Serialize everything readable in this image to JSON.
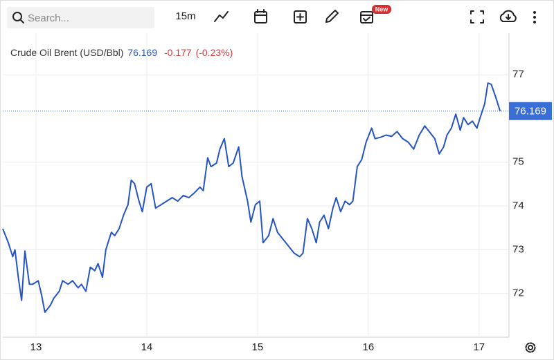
{
  "toolbar": {
    "search_placeholder": "Search...",
    "interval": "15m",
    "badge": "New"
  },
  "chart_data": {
    "type": "line",
    "series": [
      {
        "name": "Crude Oil Brent (USD/Bbl)",
        "color": "#2453c6",
        "values": [
          73.48,
          73.16,
          72.84,
          73.0,
          72.37,
          71.84,
          72.97,
          72.21,
          72.21,
          72.29,
          71.97,
          71.57,
          71.73,
          71.89,
          72.05,
          72.29,
          72.21,
          72.29,
          72.13,
          72.21,
          72.05,
          72.6,
          72.52,
          72.68,
          72.37,
          73.0,
          73.4,
          73.32,
          73.48,
          73.79,
          74.03,
          74.59,
          74.51,
          74.11,
          73.87,
          74.43,
          74.51,
          73.95,
          74.03,
          74.11,
          74.19,
          74.11,
          74.24,
          74.19,
          74.3,
          74.43,
          74.35,
          75.1,
          74.9,
          74.98,
          75.3,
          75.54,
          74.9,
          74.98,
          75.35,
          74.67,
          74.11,
          73.63,
          74.03,
          74.11,
          73.16,
          73.32,
          73.71,
          73.4,
          73.24,
          73.08,
          72.92,
          72.84,
          72.92,
          73.71,
          73.48,
          73.16,
          73.63,
          73.79,
          73.48,
          73.95,
          74.19,
          73.87,
          74.11,
          74.03,
          74.11,
          74.9,
          75.06,
          75.46,
          75.78,
          75.54,
          75.57,
          75.62,
          75.59,
          75.7,
          75.54,
          75.46,
          75.3,
          75.62,
          75.83,
          75.7,
          75.54,
          75.19,
          75.35,
          75.62,
          75.78,
          76.1,
          75.73,
          76.02,
          75.86,
          75.94,
          75.78,
          76.02,
          76.33,
          76.81,
          76.78,
          76.49,
          76.169
        ]
      }
    ],
    "x": [
      12.7,
      12.75,
      12.79,
      12.81,
      12.84,
      12.87,
      12.9,
      12.94,
      12.97,
      13.02,
      13.05,
      13.08,
      13.13,
      13.16,
      13.21,
      13.24,
      13.29,
      13.33,
      13.38,
      13.41,
      13.45,
      13.49,
      13.53,
      13.56,
      13.6,
      13.63,
      13.68,
      13.71,
      13.75,
      13.79,
      13.83,
      13.86,
      13.89,
      13.93,
      13.96,
      14.0,
      14.04,
      14.08,
      14.13,
      14.18,
      14.23,
      14.28,
      14.33,
      14.38,
      14.43,
      14.48,
      14.51,
      14.55,
      14.58,
      14.63,
      14.66,
      14.7,
      14.74,
      14.78,
      14.83,
      14.86,
      14.91,
      14.94,
      14.98,
      15.02,
      15.05,
      15.1,
      15.14,
      15.18,
      15.23,
      15.28,
      15.33,
      15.38,
      15.41,
      15.45,
      15.49,
      15.53,
      15.56,
      15.6,
      15.64,
      15.68,
      15.71,
      15.75,
      15.79,
      15.83,
      15.86,
      15.9,
      15.94,
      15.98,
      16.03,
      16.06,
      16.11,
      16.16,
      16.21,
      16.26,
      16.31,
      16.36,
      16.41,
      16.46,
      16.51,
      16.55,
      16.6,
      16.64,
      16.68,
      16.71,
      16.75,
      16.79,
      16.83,
      16.86,
      16.9,
      16.94,
      16.98,
      17.01,
      17.05,
      17.08,
      17.11,
      17.15,
      17.19
    ],
    "price": 76.169,
    "change": "-0.177",
    "change_pct": "(-0.23%)",
    "xlim": [
      12.7,
      17.27
    ],
    "xticks": [
      13,
      14,
      15,
      16,
      17
    ],
    "ylim": [
      71,
      77.95
    ],
    "yticks": [
      72,
      73,
      74,
      75,
      77
    ],
    "grid": true
  }
}
